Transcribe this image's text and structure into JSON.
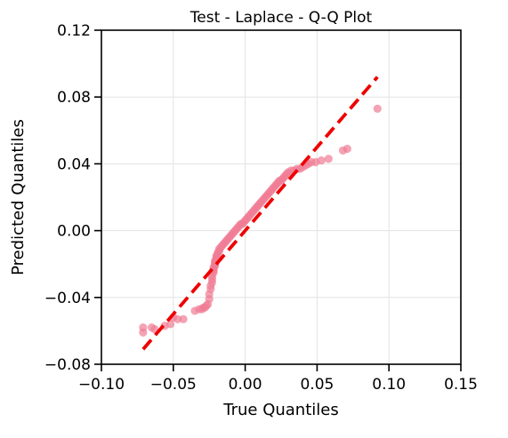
{
  "chart_data": {
    "type": "scatter",
    "title": "Test - Laplace - Q-Q Plot",
    "xlabel": "True Quantiles",
    "ylabel": "Predicted Quantiles",
    "xlim": [
      -0.1,
      0.15
    ],
    "ylim": [
      -0.08,
      0.12
    ],
    "xticks": [
      -0.1,
      -0.05,
      0.0,
      0.05,
      0.1,
      0.15
    ],
    "yticks": [
      -0.08,
      -0.04,
      0.0,
      0.04,
      0.08,
      0.12
    ],
    "xtick_labels": [
      "−0.10",
      "−0.05",
      "0.00",
      "0.05",
      "0.10",
      "0.15"
    ],
    "ytick_labels": [
      "−0.08",
      "−0.04",
      "0.00",
      "0.04",
      "0.08",
      "0.12"
    ],
    "grid": true,
    "colors": {
      "points": "#f07c94",
      "reference_line": "#ee0000"
    },
    "reference_line": {
      "x": [
        -0.071,
        0.092
      ],
      "y": [
        -0.071,
        0.092
      ],
      "style": "dashed"
    },
    "series": [
      {
        "x": [
          -0.071,
          -0.071,
          -0.065,
          -0.063,
          -0.056,
          -0.052,
          -0.05,
          -0.047,
          -0.043,
          -0.035,
          -0.032,
          -0.03,
          -0.029,
          -0.028,
          -0.027,
          -0.026,
          -0.025,
          -0.025,
          -0.024,
          -0.024,
          -0.023,
          -0.023,
          -0.023,
          -0.022,
          -0.022,
          -0.022,
          -0.022,
          -0.021,
          -0.021,
          -0.021,
          -0.021,
          -0.02,
          -0.02,
          -0.02,
          -0.019,
          -0.019,
          -0.018,
          -0.018,
          -0.017,
          -0.016,
          -0.015,
          -0.014,
          -0.013,
          -0.012,
          -0.011,
          -0.01,
          -0.009,
          -0.008,
          -0.007,
          -0.006,
          -0.005,
          -0.004,
          -0.003,
          -0.002,
          -0.001,
          0.0,
          0.001,
          0.002,
          0.003,
          0.004,
          0.005,
          0.006,
          0.007,
          0.008,
          0.009,
          0.01,
          0.011,
          0.012,
          0.013,
          0.014,
          0.015,
          0.016,
          0.017,
          0.018,
          0.019,
          0.02,
          0.021,
          0.022,
          0.023,
          0.024,
          0.025,
          0.026,
          0.027,
          0.028,
          0.029,
          0.03,
          0.032,
          0.034,
          0.036,
          0.038,
          0.04,
          0.042,
          0.044,
          0.046,
          0.049,
          0.053,
          0.058,
          0.068,
          0.071,
          0.092
        ],
        "y": [
          -0.061,
          -0.058,
          -0.058,
          -0.059,
          -0.057,
          -0.056,
          -0.052,
          -0.053,
          -0.053,
          -0.048,
          -0.047,
          -0.047,
          -0.046,
          -0.046,
          -0.045,
          -0.044,
          -0.041,
          -0.038,
          -0.035,
          -0.033,
          -0.031,
          -0.029,
          -0.027,
          -0.025,
          -0.024,
          -0.023,
          -0.022,
          -0.021,
          -0.02,
          -0.019,
          -0.018,
          -0.017,
          -0.016,
          -0.015,
          -0.014,
          -0.013,
          -0.012,
          -0.011,
          -0.01,
          -0.009,
          -0.008,
          -0.007,
          -0.006,
          -0.005,
          -0.004,
          -0.003,
          -0.002,
          -0.001,
          0.0,
          0.001,
          0.002,
          0.003,
          0.004,
          0.004,
          0.005,
          0.006,
          0.007,
          0.008,
          0.009,
          0.01,
          0.011,
          0.012,
          0.013,
          0.014,
          0.015,
          0.016,
          0.017,
          0.018,
          0.019,
          0.02,
          0.021,
          0.022,
          0.023,
          0.024,
          0.025,
          0.026,
          0.027,
          0.028,
          0.029,
          0.03,
          0.03,
          0.031,
          0.032,
          0.033,
          0.034,
          0.035,
          0.036,
          0.036,
          0.037,
          0.037,
          0.038,
          0.039,
          0.04,
          0.041,
          0.041,
          0.042,
          0.043,
          0.048,
          0.049,
          0.073
        ]
      }
    ]
  }
}
